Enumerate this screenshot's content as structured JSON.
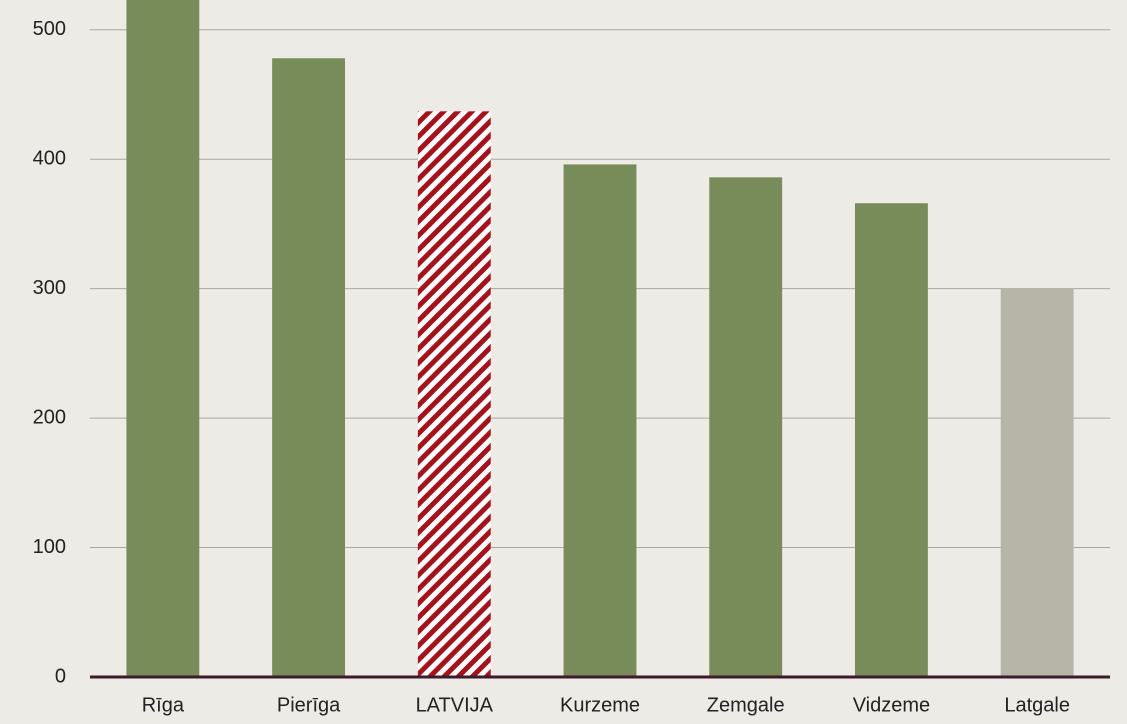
{
  "chart_data": {
    "type": "bar",
    "categories": [
      "Rīga",
      "Pierīga",
      "LATVIJA",
      "Kurzeme",
      "Zemgale",
      "Vidzeme",
      "Latgale"
    ],
    "values": [
      530,
      478,
      437,
      396,
      386,
      366,
      300
    ],
    "colors": [
      "#788c5a",
      "#788c5a",
      "#a8101a",
      "#788c5a",
      "#788c5a",
      "#788c5a",
      "#b6b5a8"
    ],
    "hatched": [
      false,
      false,
      true,
      false,
      false,
      false,
      false
    ],
    "ylim": [
      0,
      523
    ],
    "yticks": [
      0,
      100,
      200,
      300,
      400,
      500
    ],
    "grid": true
  }
}
